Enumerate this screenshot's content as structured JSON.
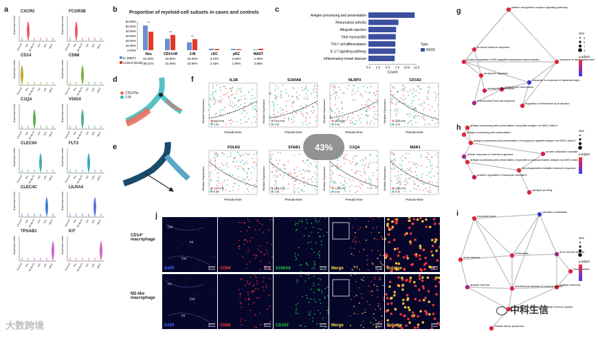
{
  "panels": {
    "a": {
      "letter": "a",
      "genes": [
        "CXCR2",
        "FCGR3B",
        "CD14",
        "CD68",
        "C1QA",
        "VSIG4",
        "CLEC9A",
        "FLT3",
        "CLEC4C",
        "LILRA4",
        "TPSAB1",
        "KIT"
      ],
      "ylabel": "Expression Level",
      "xticks": [
        "CD14+M",
        "Neu",
        "M2-like M",
        "cDC",
        "pDC",
        "MAST"
      ],
      "colors": [
        "#e04a5a",
        "#e04a5a",
        "#b9a21a",
        "#6aa82a",
        "#4aa53b",
        "#3aa87a",
        "#2aa6a0",
        "#23a0b5",
        "#3070c8",
        "#4a66d0",
        "#c455c8",
        "#d154b4"
      ]
    },
    "b": {
      "letter": "b",
      "title": "Proportion of myeloid-cell subsets in cases and controls",
      "yticks": [
        "60.00%",
        "50.00%",
        "40.00%",
        "30.00%",
        "20.00%",
        "10.00%",
        "0.00%"
      ],
      "legend": [
        {
          "name": "IC (6507)",
          "color": "#6a8fd0"
        },
        {
          "name": "Control (8139)",
          "color": "#e0392b"
        }
      ],
      "categories": [
        "Neu",
        "CD14+M",
        "2-M",
        "cDC",
        "pDC",
        "MAST"
      ],
      "ic_values": [
        "51.20%",
        "23.60%",
        "16.25%",
        "3.10%",
        "2.60%",
        "1.30%"
      ],
      "control_values": [
        "38.21%",
        "31.60%",
        "22.90%",
        "2.43%",
        "1.90%",
        "2.85%"
      ],
      "sig": [
        "***",
        "***",
        "***"
      ]
    },
    "c": {
      "letter": "c",
      "terms": [
        "Antigen processing and presentation",
        "Rheumatoid arthritis",
        "Allograft rejection",
        "Viral myocarditis",
        "Th17 cell differentiation",
        "IL-17 signaling pathway",
        "Inflammatory bowel disease"
      ],
      "xticks": [
        "0.0",
        "2.5",
        "5.0",
        "7.5",
        "10.0",
        "12.5"
      ],
      "xlabel": "Count",
      "legend_title": "Type",
      "legend_item": "KEGG",
      "bar_color": "#3d4f9f"
    },
    "d": {
      "letter": "d",
      "legend": [
        {
          "name": "CD14*M",
          "color": "#e8715e"
        },
        {
          "name": "2-M",
          "color": "#36b7bd"
        }
      ]
    },
    "e": {
      "letter": "e"
    },
    "f": {
      "letter": "f",
      "genes_top": [
        "IL1B",
        "S100A8",
        "NLRP3",
        "CD163"
      ],
      "genes_bottom": [
        "FOLR2",
        "STAB1",
        "C1QA",
        "MSR1"
      ],
      "ylabel": "Relative Expression",
      "xlabel": "Pseudo-time",
      "legend": [
        "CD14*M",
        "2-M"
      ]
    },
    "g": {
      "letter": "g",
      "labels": [
        "pattern recognition receptor signaling pathway",
        "humoral immune response",
        "positive regulation of NF-kappaB transcription factor activity",
        "response to lipopolysaccharide",
        "granulocyte chemotaxis",
        "neutrophil migration",
        "neutrophil chemotaxis",
        "response to molecule of bacterial origin",
        "antimicrobial humoral response",
        "regulation of interleukin-8 production"
      ],
      "size_title": "size",
      "size_ticks": [
        "5",
        "6",
        "7",
        "8"
      ],
      "padj_title": "p.adjust"
    },
    "h": {
      "letter": "h",
      "labels": [
        "antigen processing and presentation of peptide antigen via MHC class II",
        "antigen processing and presentation",
        "antigen processing and presentation of exogenous peptide antigen via MHC class II",
        "cellular response to interferon-gamma",
        "antigen processing and presentation of peptide or polysaccharide antigen via MHC class II",
        "protein activation cascade",
        "immunoglobulin mediated immune response",
        "positive regulation of leukocyte activation",
        "synapse pruning"
      ],
      "padj_title": "p.adjust",
      "size_title": "size"
    },
    "i": {
      "letter": "i",
      "labels": [
        "rheumatic fever",
        "inherited cholestasis",
        "aortic disease",
        "cholestasis",
        "pure red-cell aplasia",
        "aplastic anemia",
        "multiple sclerosis",
        "renal disease",
        "autoimmune disease of nervous system",
        "autoimmune disease of peripheral nervous system",
        "Guillain-Barre syndrome"
      ],
      "size_title": "size",
      "padj_title": "p.adjust"
    },
    "j": {
      "letter": "j",
      "row_labels": [
        "CD14* macrophage",
        "M2-like macrophage"
      ],
      "row1": [
        "DAPI",
        "CD68",
        "S100A8",
        "Merge",
        "Enlarge"
      ],
      "row2": [
        "DAPI",
        "CD68",
        "CD163",
        "Merge",
        "Enlarge"
      ],
      "label_colors": [
        "#4b6cff",
        "#ff3b3b",
        "#2fd14a",
        "#ffe14a",
        "#ffe14a"
      ],
      "regions": [
        "Del",
        "Int",
        "Del",
        "Int",
        "Del",
        "Int"
      ],
      "scale": "50um"
    }
  },
  "overlay": {
    "progress_text": "43%",
    "progress_value": 43
  },
  "watermarks": {
    "left": "大数跨境",
    "right": "中科生信"
  }
}
